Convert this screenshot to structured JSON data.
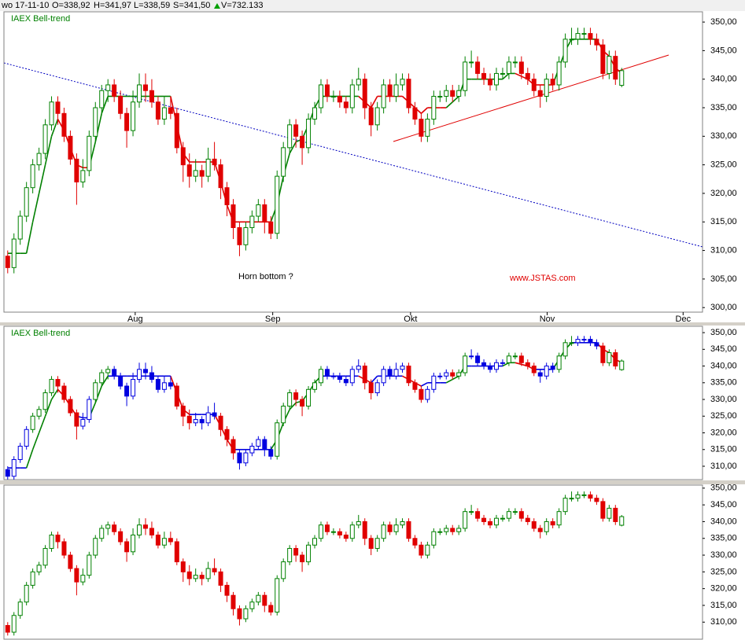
{
  "header": {
    "date": "wo 17-11-10",
    "open": "O=338,92",
    "high": "H=341,97",
    "low": "L=338,59",
    "close": "S=341,50",
    "volume": "V=732.133"
  },
  "annotations": {
    "horn": "Horn bottom ?",
    "site": "www.JSTAS.com"
  },
  "chart_data": {
    "type": "candlestick",
    "xlim": [
      -0.6,
      110.9
    ],
    "xticks": [
      {
        "value": 20.35,
        "label": "Aug"
      },
      {
        "value": 42.3,
        "label": "Sep"
      },
      {
        "value": 64.3,
        "label": "Okt"
      },
      {
        "value": 86.1,
        "label": "Nov"
      },
      {
        "value": 107.8,
        "label": "Dec"
      }
    ],
    "open": [
      309,
      307,
      312,
      316,
      321,
      325,
      327,
      332,
      336,
      334,
      330,
      326,
      322,
      324,
      330,
      335,
      338,
      339,
      337,
      334,
      331,
      336,
      339,
      338,
      336,
      333,
      335,
      334,
      328,
      325,
      323,
      324,
      323,
      326,
      325,
      321,
      318,
      314,
      311,
      314,
      316,
      318,
      315,
      313,
      323,
      328,
      332,
      330,
      328,
      333,
      335,
      339,
      337,
      337,
      336,
      335,
      339,
      340,
      335,
      332,
      335,
      339,
      337,
      339,
      340,
      335,
      333,
      330,
      333,
      337,
      337,
      338,
      337,
      338,
      343,
      343,
      341,
      340,
      339,
      341,
      341,
      343,
      343,
      341,
      340,
      338,
      337,
      340,
      339,
      343,
      347,
      347,
      348,
      348,
      347,
      346,
      341,
      344,
      338.92
    ],
    "high": [
      310,
      313,
      317,
      322,
      326,
      328,
      333,
      337,
      337,
      335,
      331,
      327,
      326,
      331,
      336,
      339,
      340,
      340,
      338,
      335,
      338,
      341,
      341,
      340,
      337,
      337,
      337,
      335,
      329,
      327,
      326,
      325,
      328,
      329,
      326,
      322,
      319,
      315,
      315,
      317,
      319,
      319,
      316,
      324,
      329,
      333,
      333,
      331,
      334,
      336,
      340,
      340,
      338,
      338,
      337,
      340,
      342,
      341,
      336,
      336,
      340,
      340,
      341,
      341,
      341,
      336,
      334,
      334,
      338,
      338,
      339,
      339,
      339,
      344,
      345,
      344,
      342,
      341,
      342,
      342,
      344,
      344,
      344,
      342,
      341,
      339,
      341,
      341,
      344,
      348,
      349,
      349,
      349,
      349,
      348,
      347,
      345,
      345,
      341.97
    ],
    "low": [
      306,
      306,
      311,
      315,
      320,
      324,
      326,
      331,
      332,
      329,
      325,
      318,
      321,
      323,
      329,
      334,
      336,
      336,
      333,
      328,
      330,
      335,
      336,
      335,
      332,
      332,
      333,
      327,
      322,
      321,
      322,
      321,
      322,
      324,
      319,
      316,
      312,
      309,
      310,
      313,
      315,
      313,
      312,
      312,
      322,
      327,
      328,
      325,
      327,
      332,
      334,
      336,
      336,
      335,
      334,
      334,
      338,
      333,
      330,
      331,
      334,
      336,
      336,
      338,
      334,
      332,
      329,
      329,
      332,
      336,
      336,
      336,
      336,
      337,
      342,
      340,
      339,
      338,
      338,
      340,
      340,
      342,
      340,
      339,
      337,
      335,
      336,
      338,
      338,
      342,
      346,
      346,
      347,
      346,
      345,
      340,
      340,
      339,
      338.59
    ],
    "close": [
      307,
      312,
      316,
      321,
      325,
      327,
      332,
      336,
      334,
      330,
      326,
      322,
      324,
      330,
      335,
      338,
      339,
      337,
      334,
      331,
      336,
      339,
      338,
      336,
      333,
      335,
      334,
      328,
      325,
      323,
      324,
      323,
      326,
      325,
      321,
      318,
      314,
      311,
      314,
      316,
      318,
      315,
      313,
      323,
      328,
      332,
      330,
      328,
      333,
      335,
      339,
      337,
      337,
      336,
      335,
      339,
      340,
      335,
      332,
      335,
      339,
      337,
      339,
      340,
      335,
      333,
      330,
      333,
      337,
      337,
      338,
      337,
      338,
      343,
      343,
      341,
      340,
      339,
      341,
      341,
      343,
      343,
      341,
      340,
      338,
      337,
      340,
      339,
      343,
      347,
      347,
      348,
      348,
      347,
      346,
      341,
      344,
      340,
      341.5
    ],
    "trend": {
      "name": "Bell-trend",
      "values": [
        309.5,
        309.5,
        309.5,
        309.5,
        315,
        320,
        325,
        330,
        333,
        331,
        328,
        325,
        324.5,
        324.5,
        329,
        334,
        337,
        337,
        337,
        337,
        337,
        337,
        337,
        337,
        337,
        337,
        337,
        332,
        327,
        325.5,
        325.5,
        325.5,
        325.5,
        325.5,
        322,
        318,
        315,
        315,
        315,
        315,
        315,
        315,
        315,
        318,
        323,
        327,
        329,
        329.5,
        332,
        335,
        337,
        337,
        337,
        337,
        337,
        337,
        337,
        336,
        335,
        337,
        337,
        337,
        337,
        337,
        336,
        335,
        334,
        335,
        335,
        335,
        335,
        336,
        337,
        340,
        340,
        340,
        340,
        340,
        340,
        340,
        341,
        341,
        340.5,
        340,
        339,
        339,
        339,
        339,
        342,
        345,
        347,
        347,
        347,
        347,
        347,
        345,
        344,
        342,
        341
      ],
      "states": [
        "flat",
        "flat",
        "flat",
        "flat",
        "up",
        "up",
        "up",
        "up",
        "up",
        "down",
        "down",
        "down",
        "flat",
        "flat",
        "up",
        "up",
        "up",
        "flat",
        "flat",
        "flat",
        "flat",
        "flat",
        "flat",
        "flat",
        "flat",
        "flat",
        "flat",
        "down",
        "down",
        "down",
        "flat",
        "flat",
        "flat",
        "flat",
        "down",
        "down",
        "down",
        "flat",
        "flat",
        "flat",
        "flat",
        "flat",
        "flat",
        "up",
        "up",
        "up",
        "up",
        "up",
        "up",
        "up",
        "up",
        "flat",
        "flat",
        "flat",
        "flat",
        "flat",
        "flat",
        "down",
        "down",
        "flat",
        "flat",
        "flat",
        "flat",
        "flat",
        "down",
        "down",
        "down",
        "flat",
        "flat",
        "flat",
        "flat",
        "up",
        "up",
        "up",
        "flat",
        "flat",
        "flat",
        "flat",
        "flat",
        "flat",
        "up",
        "up",
        "down",
        "down",
        "down",
        "flat",
        "flat",
        "flat",
        "up",
        "up",
        "up",
        "flat",
        "flat",
        "flat",
        "flat",
        "down",
        "down",
        "down",
        "down"
      ]
    },
    "colors": {
      "up": "#008000",
      "down": "#e00000",
      "flat": "#0000e0"
    },
    "panels": [
      {
        "label": "IAEX  Bell-trend",
        "ylim": [
          299.2,
          351.8
        ],
        "yticks": [
          {
            "value": 300,
            "label": "300,00"
          },
          {
            "value": 305,
            "label": "305,00"
          },
          {
            "value": 310,
            "label": "310,00"
          },
          {
            "value": 315,
            "label": "315,00"
          },
          {
            "value": 320,
            "label": "320,00"
          },
          {
            "value": 325,
            "label": "325,00"
          },
          {
            "value": 330,
            "label": "330,00"
          },
          {
            "value": 335,
            "label": "335,00"
          },
          {
            "value": 340,
            "label": "340,00"
          },
          {
            "value": 345,
            "label": "345,00"
          },
          {
            "value": 350,
            "label": "350,00"
          }
        ]
      },
      {
        "label": "IAEX  Bell-trend",
        "ylim": [
          306.0,
          351.9
        ],
        "yticks": [
          {
            "value": 310,
            "label": "310,00"
          },
          {
            "value": 315,
            "label": "315,00"
          },
          {
            "value": 320,
            "label": "320,00"
          },
          {
            "value": 325,
            "label": "325,00"
          },
          {
            "value": 330,
            "label": "330,00"
          },
          {
            "value": 335,
            "label": "335,00"
          },
          {
            "value": 340,
            "label": "340,00"
          },
          {
            "value": 345,
            "label": "345,00"
          },
          {
            "value": 350,
            "label": "350,00"
          }
        ]
      },
      {
        "ylim": [
          304.9,
          350.9
        ],
        "yticks": [
          {
            "value": 310,
            "label": "310,00"
          },
          {
            "value": 315,
            "label": "315,00"
          },
          {
            "value": 320,
            "label": "320,00"
          },
          {
            "value": 325,
            "label": "325,00"
          },
          {
            "value": 330,
            "label": "330,00"
          },
          {
            "value": 335,
            "label": "335,00"
          },
          {
            "value": 340,
            "label": "340,00"
          },
          {
            "value": 345,
            "label": "345,00"
          },
          {
            "value": 350,
            "label": "350,00"
          }
        ]
      }
    ]
  }
}
